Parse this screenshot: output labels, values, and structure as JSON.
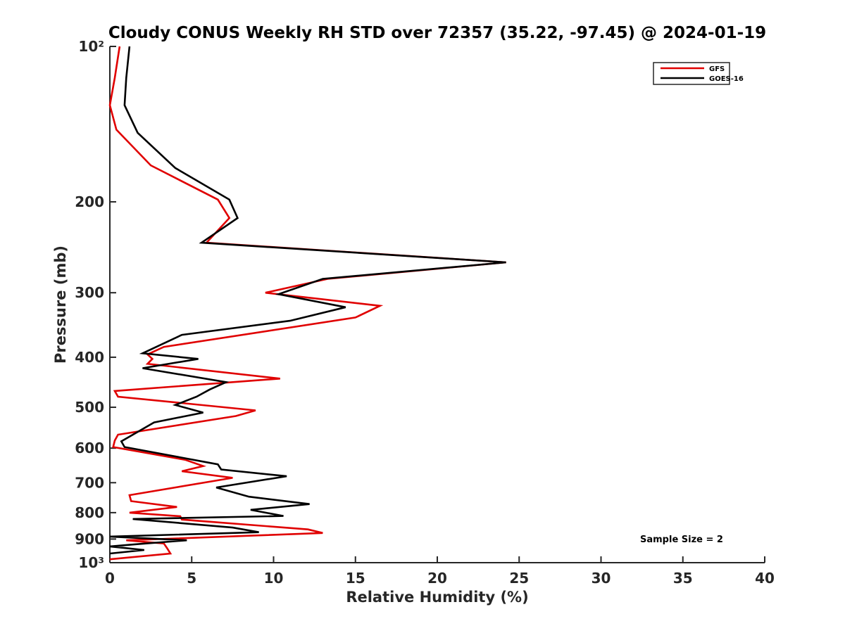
{
  "chart_data": {
    "type": "line",
    "title": "Cloudy CONUS Weekly RH STD over 72357 (35.22, -97.45) @ 2024-01-19",
    "xlabel": "Relative Humidity (%)",
    "ylabel": "Pressure (mb)",
    "xlim": [
      0,
      40
    ],
    "ylim": [
      100,
      1000
    ],
    "y_scale": "log",
    "y_reversed": true,
    "x_ticks": [
      0,
      5,
      10,
      15,
      20,
      25,
      30,
      35,
      40
    ],
    "x_tick_labels": [
      "0",
      "5",
      "10",
      "15",
      "20",
      "25",
      "30",
      "35",
      "40"
    ],
    "y_ticks": [
      100,
      200,
      300,
      400,
      500,
      600,
      700,
      800,
      900,
      1000
    ],
    "y_tick_labels": [
      "10²",
      "200",
      "300",
      "400",
      "500",
      "600",
      "700",
      "800",
      "900",
      "10³"
    ],
    "grid": false,
    "legend_position": "top-right",
    "annotation": "Sample Size = 2",
    "series": [
      {
        "name": "GFS",
        "color": "#e00000",
        "points": [
          [
            0.6,
            100
          ],
          [
            0.3,
            115
          ],
          [
            0.0,
            130
          ],
          [
            0.4,
            145
          ],
          [
            2.5,
            170
          ],
          [
            6.6,
            198
          ],
          [
            7.3,
            215
          ],
          [
            5.9,
            240
          ],
          [
            24.2,
            262
          ],
          [
            13.3,
            282
          ],
          [
            9.5,
            300
          ],
          [
            16.5,
            318
          ],
          [
            15.0,
            335
          ],
          [
            3.3,
            382
          ],
          [
            2.3,
            395
          ],
          [
            2.6,
            403
          ],
          [
            2.3,
            412
          ],
          [
            10.4,
            440
          ],
          [
            0.3,
            465
          ],
          [
            0.5,
            477
          ],
          [
            8.9,
            507
          ],
          [
            7.7,
            520
          ],
          [
            0.5,
            565
          ],
          [
            0.3,
            580
          ],
          [
            0.2,
            597
          ],
          [
            4.6,
            632
          ],
          [
            5.7,
            650
          ],
          [
            4.4,
            665
          ],
          [
            7.5,
            685
          ],
          [
            1.2,
            740
          ],
          [
            1.3,
            760
          ],
          [
            4.1,
            780
          ],
          [
            1.2,
            800
          ],
          [
            4.3,
            813
          ],
          [
            4.4,
            825
          ],
          [
            12.1,
            862
          ],
          [
            13.0,
            876
          ],
          [
            1.0,
            905
          ],
          [
            3.3,
            918
          ],
          [
            3.5,
            938
          ],
          [
            3.7,
            960
          ],
          [
            0.0,
            985
          ]
        ]
      },
      {
        "name": "GOES-16",
        "color": "#000000",
        "points": [
          [
            1.2,
            100
          ],
          [
            1.0,
            115
          ],
          [
            0.9,
            130
          ],
          [
            1.7,
            147
          ],
          [
            4.0,
            172
          ],
          [
            7.3,
            198
          ],
          [
            7.8,
            215
          ],
          [
            5.6,
            240
          ],
          [
            24.2,
            262
          ],
          [
            13.0,
            282
          ],
          [
            10.3,
            302
          ],
          [
            14.4,
            320
          ],
          [
            11.0,
            340
          ],
          [
            4.4,
            362
          ],
          [
            2.0,
            393
          ],
          [
            5.4,
            403
          ],
          [
            2.0,
            420
          ],
          [
            7.1,
            447
          ],
          [
            6.1,
            462
          ],
          [
            5.3,
            477
          ],
          [
            4.0,
            495
          ],
          [
            5.7,
            512
          ],
          [
            2.7,
            535
          ],
          [
            0.7,
            582
          ],
          [
            0.9,
            597
          ],
          [
            6.6,
            645
          ],
          [
            6.8,
            660
          ],
          [
            10.8,
            680
          ],
          [
            6.5,
            715
          ],
          [
            8.5,
            745
          ],
          [
            12.2,
            770
          ],
          [
            8.6,
            790
          ],
          [
            10.6,
            812
          ],
          [
            1.4,
            823
          ],
          [
            7.5,
            855
          ],
          [
            9.1,
            873
          ],
          [
            0.0,
            890
          ],
          [
            4.7,
            905
          ],
          [
            1.8,
            920
          ],
          [
            0.0,
            930
          ],
          [
            2.1,
            945
          ],
          [
            0.0,
            960
          ]
        ]
      }
    ]
  }
}
